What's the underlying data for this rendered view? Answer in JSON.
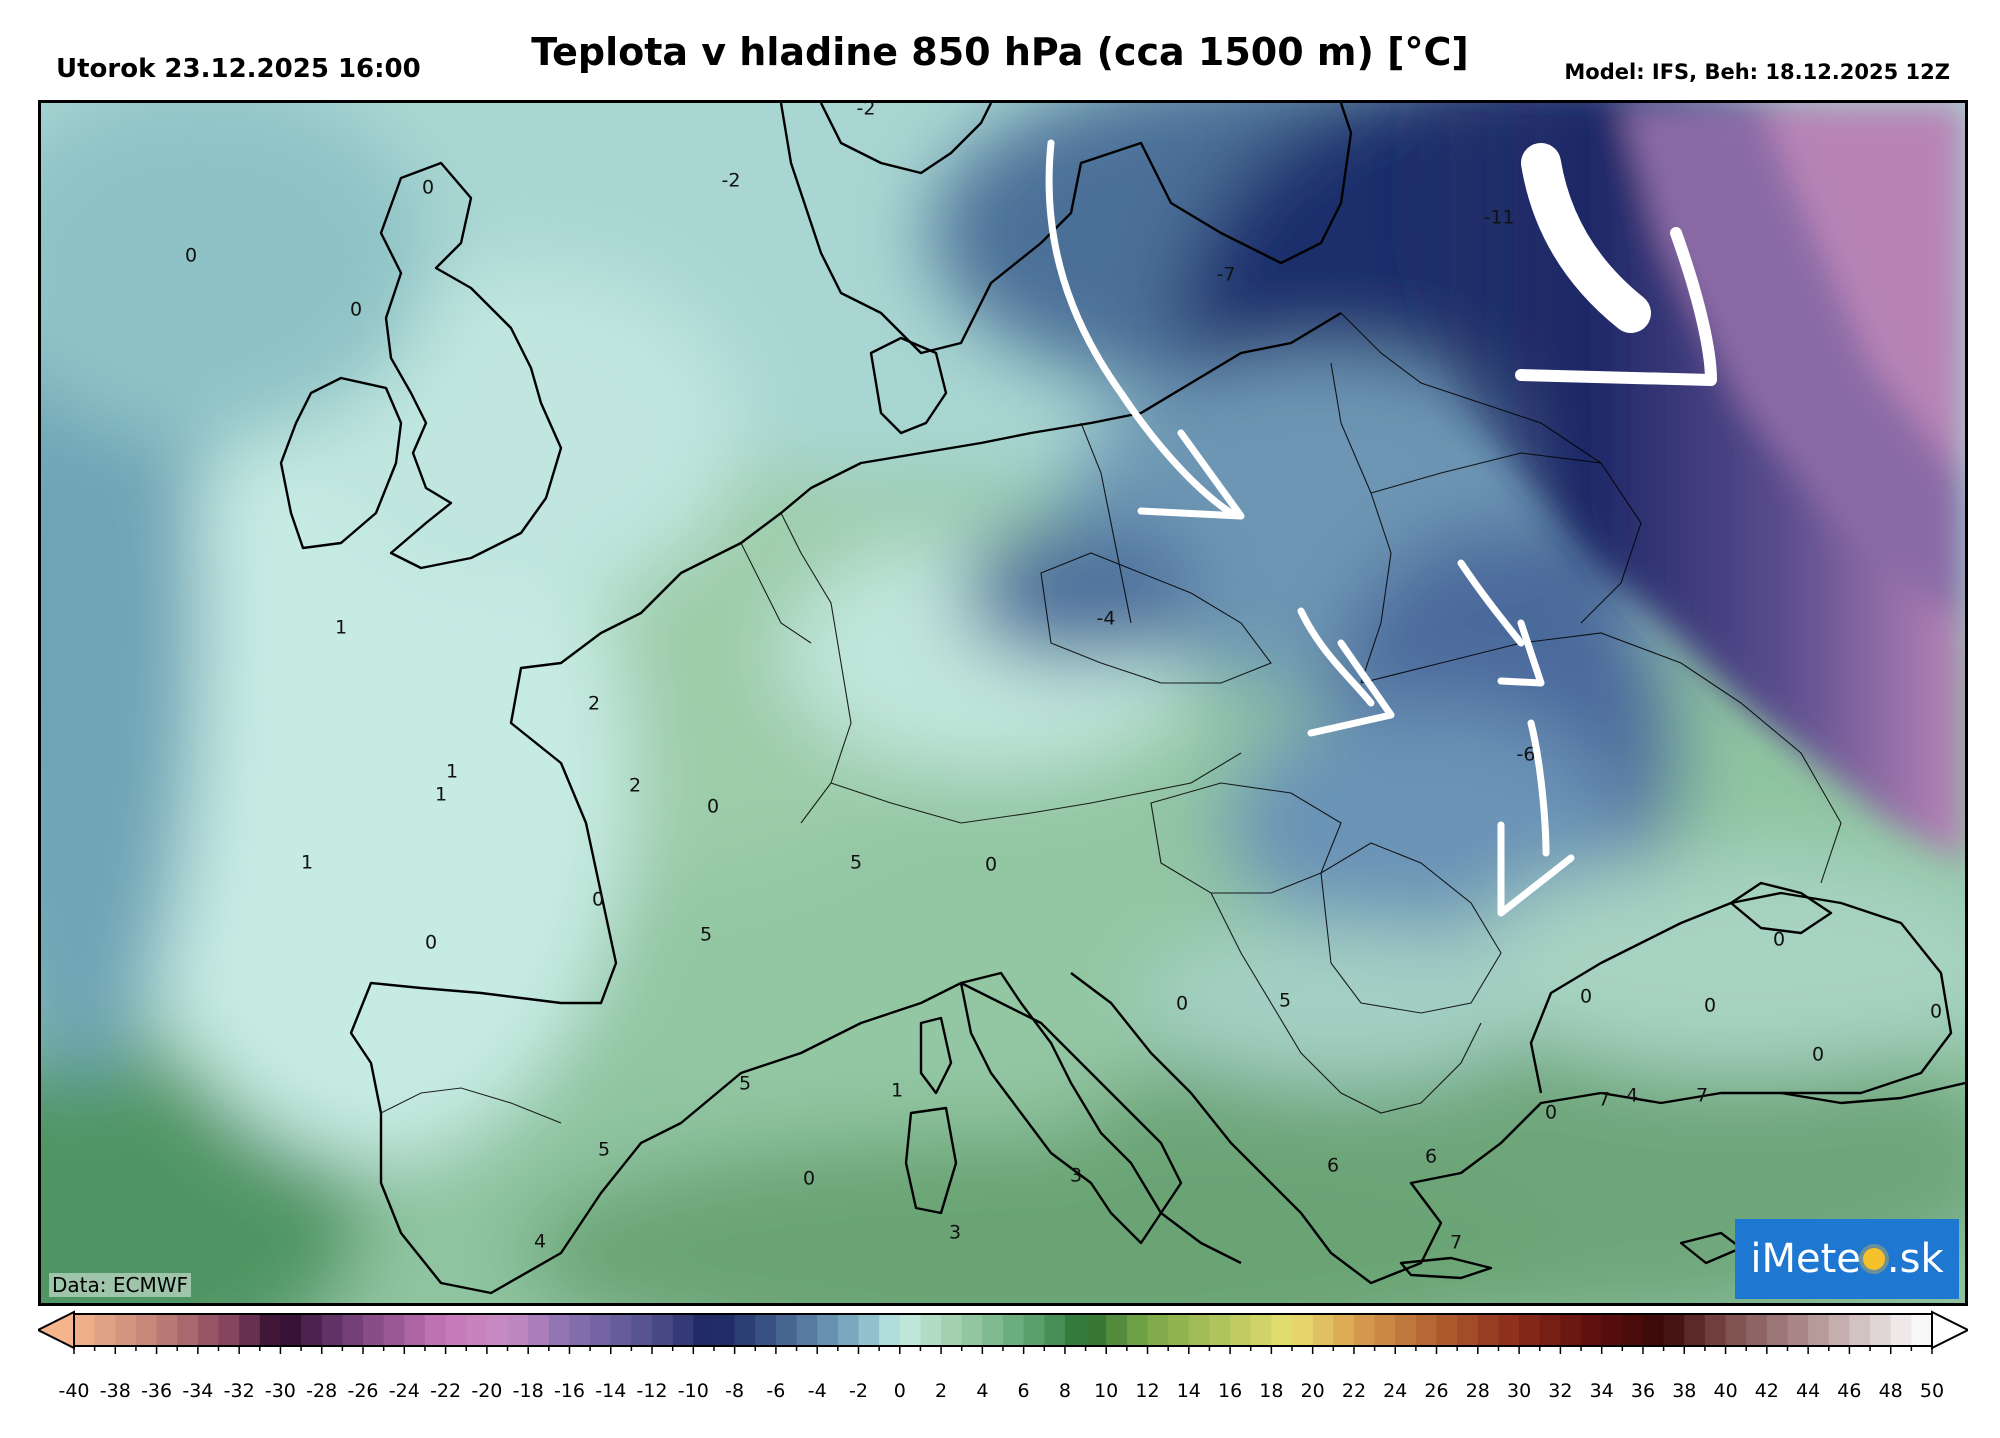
{
  "header": {
    "title": "Teplota v hladine 850 hPa (cca 1500 m) [°C]",
    "datetime": "Utorok 23.12.2025 16:00",
    "model": "Model: IFS, Beh: 18.12.2025 12Z"
  },
  "map": {
    "region": "Europe",
    "variable_unit": "°C",
    "data_credit": "Data: ECMWF",
    "logo": {
      "text_left": "iMete",
      "text_right": ".sk"
    },
    "annotations": [
      {
        "kind": "arrow",
        "color": "#ffffff",
        "direction": "south-east",
        "area": "Baltic Sea to Poland"
      },
      {
        "kind": "arrow",
        "color": "#ffffff",
        "direction": "south-east",
        "area": "western Russia"
      },
      {
        "kind": "arrow",
        "color": "#ffffff",
        "direction": "south-east",
        "area": "Poland to Ukraine"
      },
      {
        "kind": "arrow",
        "color": "#ffffff",
        "direction": "south-east",
        "area": "Belarus to Ukraine"
      },
      {
        "kind": "arrow",
        "color": "#ffffff",
        "direction": "south",
        "area": "Ukraine to Moldova"
      }
    ],
    "value_labels": [
      {
        "text": "-2"
      },
      {
        "text": "-2"
      },
      {
        "text": "0"
      },
      {
        "text": "0"
      },
      {
        "text": "0"
      },
      {
        "text": "-11"
      },
      {
        "text": "-7"
      },
      {
        "text": "-4"
      },
      {
        "text": "-6"
      },
      {
        "text": "1"
      },
      {
        "text": "2"
      },
      {
        "text": "1"
      },
      {
        "text": "1"
      },
      {
        "text": "1"
      },
      {
        "text": "2"
      },
      {
        "text": "0"
      },
      {
        "text": "5"
      },
      {
        "text": "0"
      },
      {
        "text": "0"
      },
      {
        "text": "0"
      },
      {
        "text": "5"
      },
      {
        "text": "0"
      },
      {
        "text": "5"
      },
      {
        "text": "5"
      },
      {
        "text": "1"
      },
      {
        "text": "0"
      },
      {
        "text": "0"
      },
      {
        "text": "6"
      },
      {
        "text": "6"
      },
      {
        "text": "0"
      },
      {
        "text": "4"
      },
      {
        "text": "3"
      },
      {
        "text": "0"
      },
      {
        "text": "7"
      },
      {
        "text": "4"
      },
      {
        "text": "7"
      },
      {
        "text": "0"
      },
      {
        "text": "5"
      },
      {
        "text": "0"
      },
      {
        "text": "7"
      },
      {
        "text": "3"
      },
      {
        "text": "0"
      }
    ]
  },
  "colorbar": {
    "min": -40,
    "max": 50,
    "step": 1,
    "extend": "both",
    "tick_labels": [
      "-40",
      "-38",
      "-36",
      "-34",
      "-32",
      "-30",
      "-28",
      "-26",
      "-24",
      "-22",
      "-20",
      "-18",
      "-16",
      "-14",
      "-12",
      "-10",
      "-8",
      "-6",
      "-4",
      "-2",
      "0",
      "2",
      "4",
      "6",
      "8",
      "10",
      "12",
      "14",
      "16",
      "18",
      "20",
      "22",
      "24",
      "26",
      "28",
      "30",
      "32",
      "34",
      "36",
      "38",
      "40",
      "42",
      "44",
      "46",
      "48",
      "50"
    ],
    "color_stops": [
      {
        "value": -40,
        "color": "#f4b48c"
      },
      {
        "value": -36,
        "color": "#c28277"
      },
      {
        "value": -32,
        "color": "#7c3c5c"
      },
      {
        "value": -30,
        "color": "#2c0a2c"
      },
      {
        "value": -27,
        "color": "#6c3a70"
      },
      {
        "value": -22,
        "color": "#c878b8"
      },
      {
        "value": -19,
        "color": "#c78cc4"
      },
      {
        "value": -16,
        "color": "#8a70b0"
      },
      {
        "value": -12,
        "color": "#50508c"
      },
      {
        "value": -9,
        "color": "#1a2460"
      },
      {
        "value": -6,
        "color": "#3e5a8a"
      },
      {
        "value": -3,
        "color": "#6f9cb6"
      },
      {
        "value": -1,
        "color": "#9bcdd4"
      },
      {
        "value": 0,
        "color": "#c7ece3"
      },
      {
        "value": 3,
        "color": "#9ccca8"
      },
      {
        "value": 7,
        "color": "#4f9a64"
      },
      {
        "value": 9,
        "color": "#2a7030"
      },
      {
        "value": 12,
        "color": "#7aa848"
      },
      {
        "value": 16,
        "color": "#b8c860"
      },
      {
        "value": 19,
        "color": "#e8e070"
      },
      {
        "value": 22,
        "color": "#d8a050"
      },
      {
        "value": 26,
        "color": "#b06030"
      },
      {
        "value": 30,
        "color": "#8a2a1a"
      },
      {
        "value": 34,
        "color": "#5a0c0c"
      },
      {
        "value": 37,
        "color": "#3a0a0a"
      },
      {
        "value": 40,
        "color": "#7a4a4a"
      },
      {
        "value": 44,
        "color": "#b09090"
      },
      {
        "value": 48,
        "color": "#e8e0e0"
      },
      {
        "value": 50,
        "color": "#ffffff"
      }
    ]
  }
}
